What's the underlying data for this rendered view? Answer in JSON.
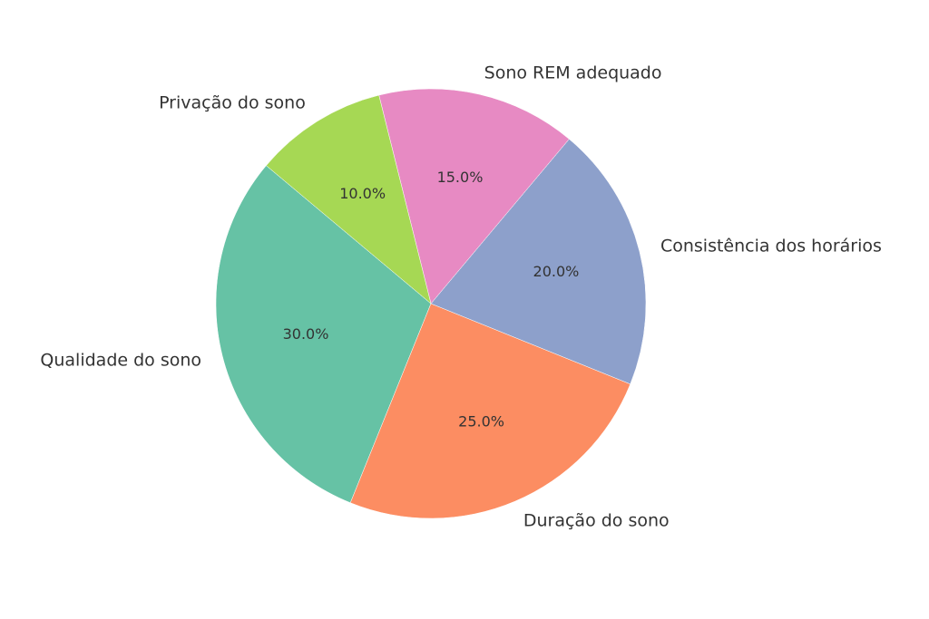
{
  "chart_data": {
    "type": "pie",
    "categories": [
      "Qualidade do sono",
      "Duração do sono",
      "Consistência dos horários",
      "Sono REM adequado",
      "Privação do sono"
    ],
    "values": [
      30,
      25,
      20,
      15,
      10
    ],
    "value_labels": [
      "30.0%",
      "25.0%",
      "20.0%",
      "15.0%",
      "10.0%"
    ],
    "colors": [
      "#66c2a5",
      "#fc8d62",
      "#8da0cb",
      "#e78ac3",
      "#a6d854"
    ]
  }
}
